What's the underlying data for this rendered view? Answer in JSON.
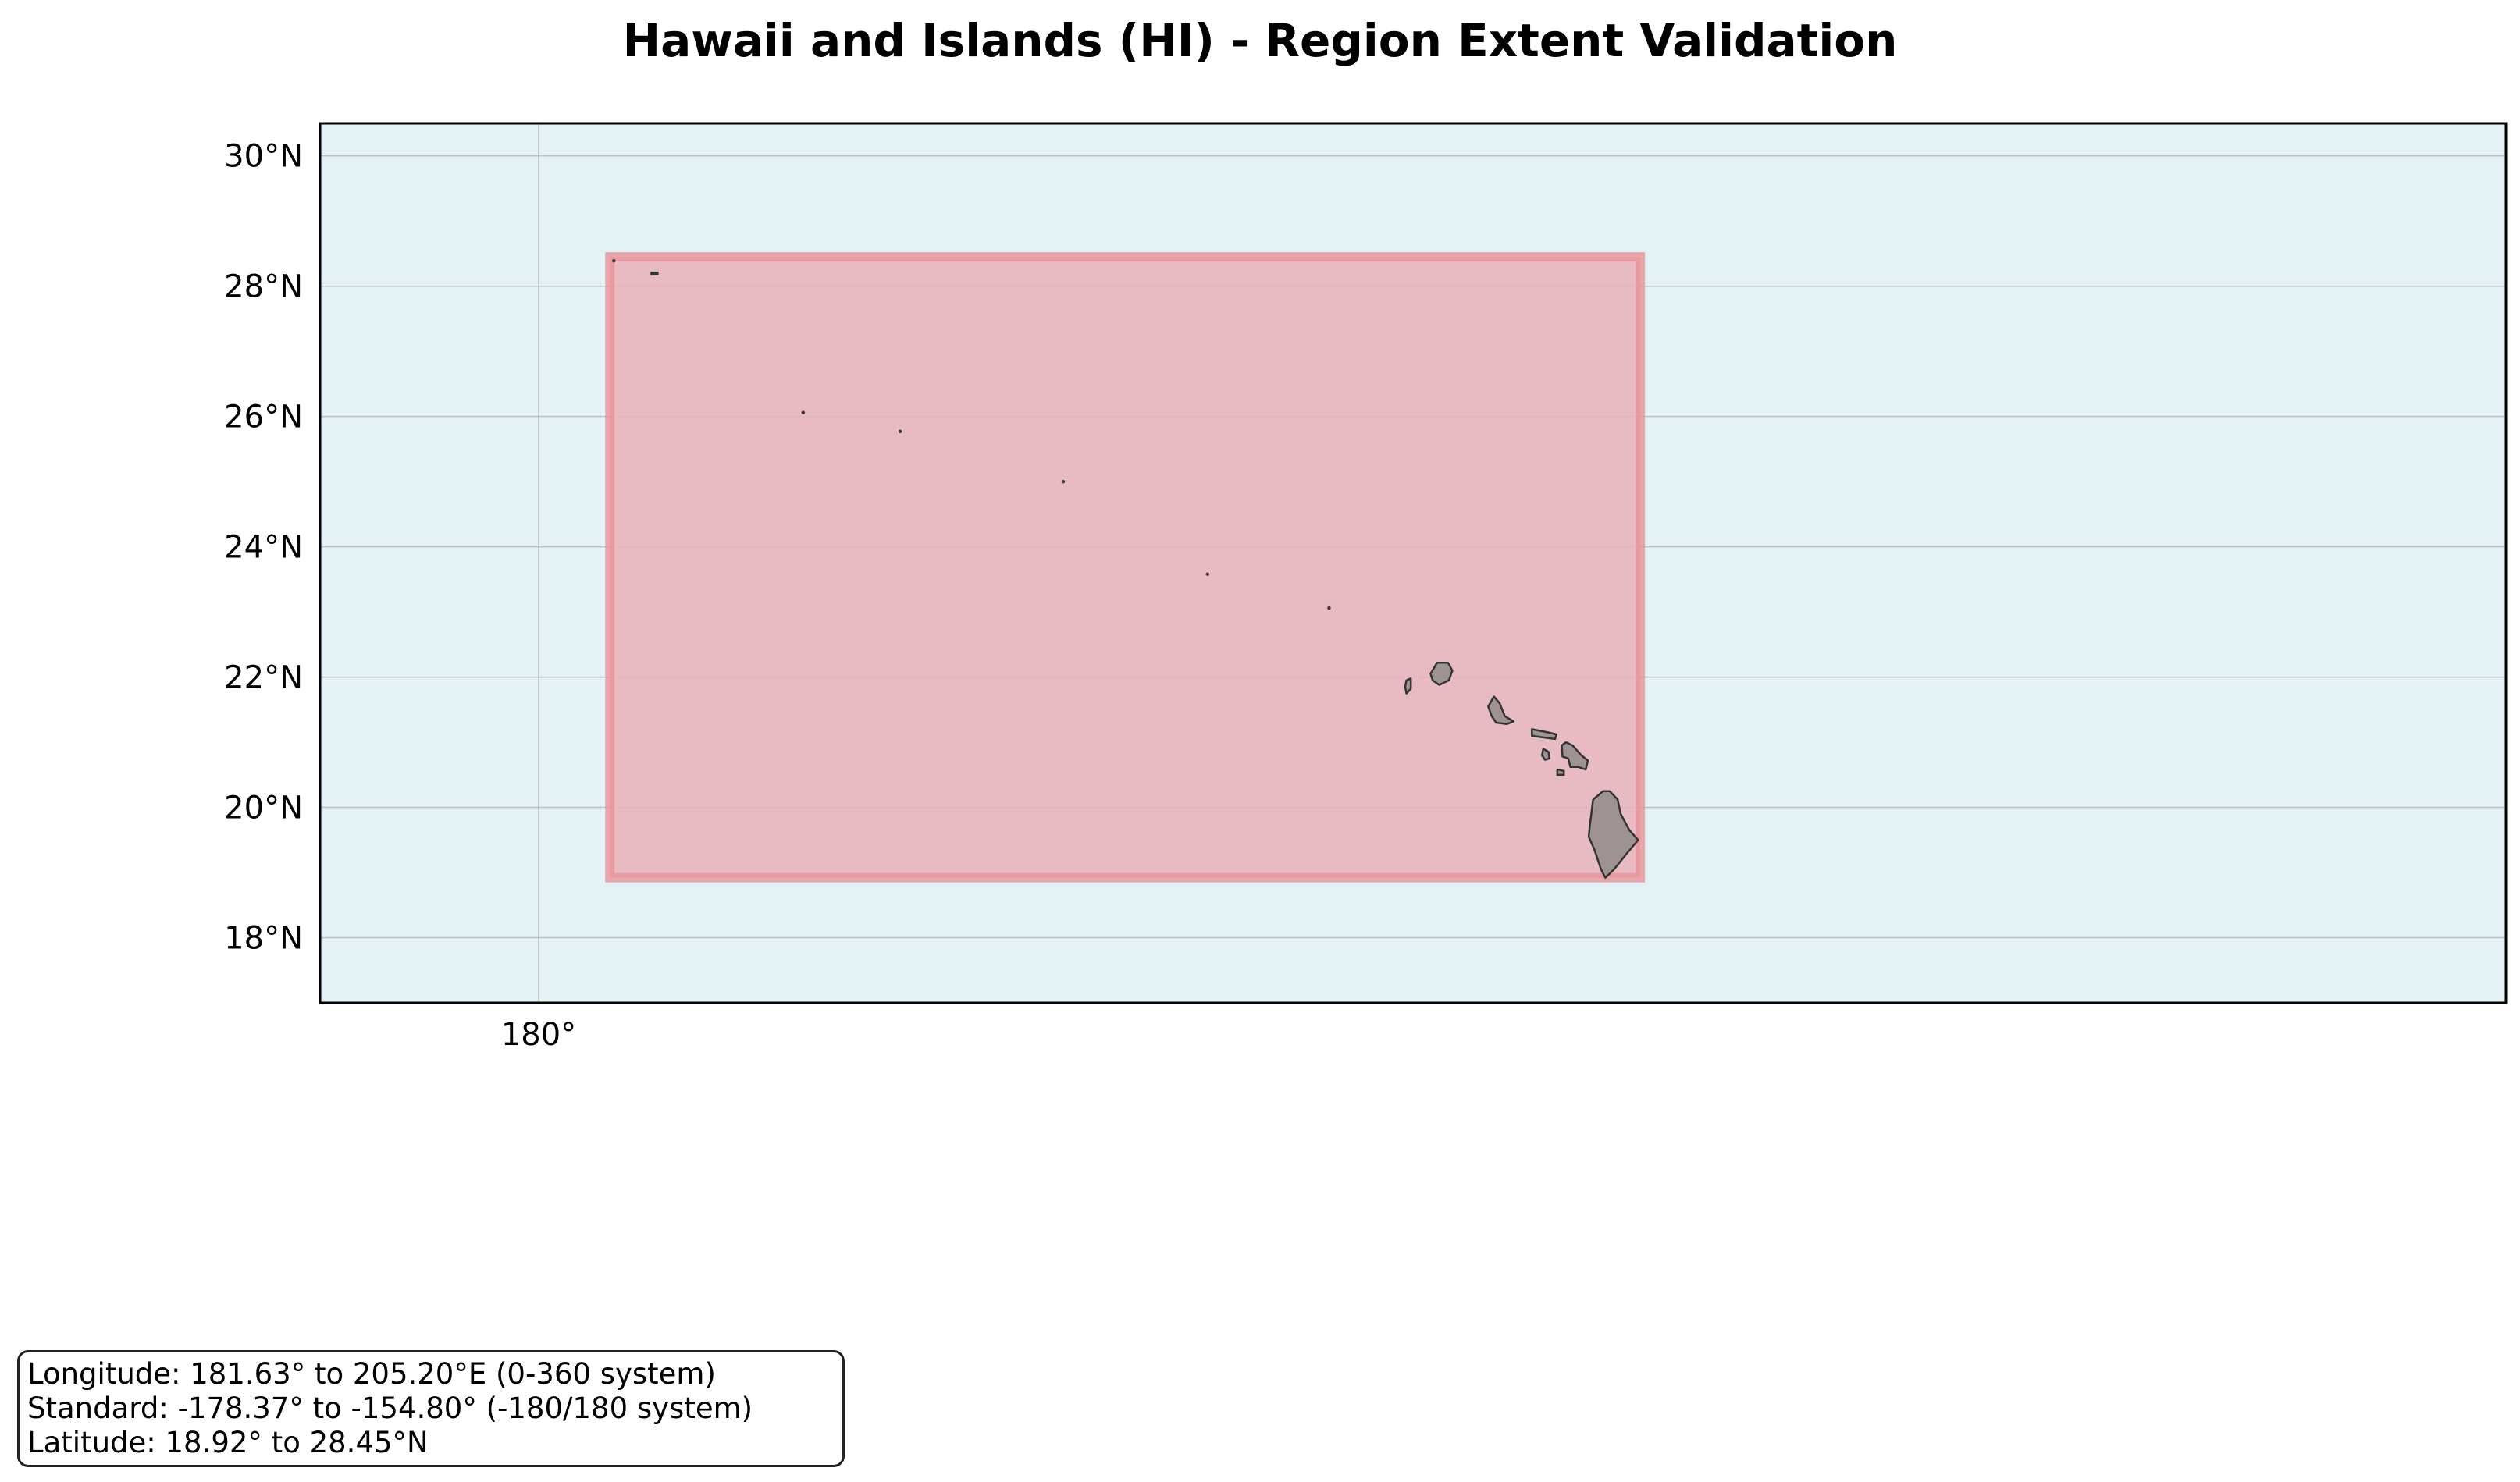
{
  "title": "Hawaii and Islands (HI) - Region Extent Validation",
  "map": {
    "projection": "PlateCarree",
    "lon_range": [
      175,
      225
    ],
    "lat_range": [
      17,
      30.5
    ],
    "ocean_color": "#e4f2f6",
    "land_color": "#9e9292",
    "land_edge_color": "#333333",
    "gridlines": true,
    "lat_ticks": [
      {
        "value": 18,
        "label": "18°N"
      },
      {
        "value": 20,
        "label": "20°N"
      },
      {
        "value": 22,
        "label": "22°N"
      },
      {
        "value": 24,
        "label": "24°N"
      },
      {
        "value": 26,
        "label": "26°N"
      },
      {
        "value": 28,
        "label": "28°N"
      },
      {
        "value": 30,
        "label": "30°N"
      }
    ],
    "lon_ticks": [
      {
        "value": 180,
        "label": "180°"
      }
    ]
  },
  "region": {
    "code": "HI",
    "name": "Hawaii and Islands",
    "lon_min": 181.63,
    "lon_max": 205.2,
    "lat_min": 18.92,
    "lat_max": 28.45,
    "fill_color": "#e8b4bc",
    "edge_color": "#e88f94"
  },
  "islands": [
    {
      "name": "Hawaii",
      "points": [
        [
          204.35,
          20.25
        ],
        [
          204.12,
          20.12
        ],
        [
          204.05,
          19.75
        ],
        [
          204.02,
          19.55
        ],
        [
          204.15,
          19.35
        ],
        [
          204.3,
          19.05
        ],
        [
          204.4,
          18.92
        ],
        [
          204.6,
          19.05
        ],
        [
          204.9,
          19.3
        ],
        [
          205.15,
          19.5
        ],
        [
          204.95,
          19.65
        ],
        [
          204.75,
          19.9
        ],
        [
          204.68,
          20.12
        ],
        [
          204.5,
          20.25
        ]
      ]
    },
    {
      "name": "Maui",
      "points": [
        [
          203.5,
          21.0
        ],
        [
          203.65,
          20.95
        ],
        [
          203.85,
          20.8
        ],
        [
          204.0,
          20.72
        ],
        [
          203.95,
          20.58
        ],
        [
          203.78,
          20.62
        ],
        [
          203.6,
          20.62
        ],
        [
          203.55,
          20.75
        ],
        [
          203.42,
          20.78
        ],
        [
          203.4,
          20.95
        ]
      ]
    },
    {
      "name": "Molokai",
      "points": [
        [
          202.72,
          21.2
        ],
        [
          203.1,
          21.15
        ],
        [
          203.28,
          21.12
        ],
        [
          203.25,
          21.05
        ],
        [
          202.9,
          21.08
        ],
        [
          202.72,
          21.1
        ]
      ]
    },
    {
      "name": "Lanai",
      "points": [
        [
          202.98,
          20.9
        ],
        [
          203.1,
          20.85
        ],
        [
          203.12,
          20.75
        ],
        [
          203.02,
          20.73
        ],
        [
          202.95,
          20.8
        ]
      ]
    },
    {
      "name": "Kahoolawe",
      "points": [
        [
          203.3,
          20.58
        ],
        [
          203.45,
          20.56
        ],
        [
          203.45,
          20.5
        ],
        [
          203.3,
          20.5
        ]
      ]
    },
    {
      "name": "Oahu",
      "points": [
        [
          201.72,
          21.55
        ],
        [
          201.85,
          21.7
        ],
        [
          201.98,
          21.6
        ],
        [
          202.1,
          21.4
        ],
        [
          202.3,
          21.32
        ],
        [
          202.15,
          21.28
        ],
        [
          201.9,
          21.3
        ],
        [
          201.8,
          21.4
        ]
      ]
    },
    {
      "name": "Kauai",
      "points": [
        [
          200.4,
          22.05
        ],
        [
          200.55,
          22.22
        ],
        [
          200.8,
          22.22
        ],
        [
          200.9,
          22.1
        ],
        [
          200.82,
          21.95
        ],
        [
          200.6,
          21.88
        ],
        [
          200.45,
          21.95
        ]
      ]
    },
    {
      "name": "Niihau",
      "points": [
        [
          199.85,
          21.95
        ],
        [
          199.95,
          21.98
        ],
        [
          199.95,
          21.82
        ],
        [
          199.85,
          21.75
        ],
        [
          199.82,
          21.85
        ]
      ]
    }
  ],
  "small_islands": [
    {
      "name": "Nihoa",
      "lon": 198.08,
      "lat": 23.06
    },
    {
      "name": "Necker",
      "lon": 195.3,
      "lat": 23.58
    },
    {
      "name": "Gardner Pinnacles",
      "lon": 192.0,
      "lat": 25.0
    },
    {
      "name": "Laysan",
      "lon": 188.27,
      "lat": 25.77
    },
    {
      "name": "Lisianski",
      "lon": 186.05,
      "lat": 26.06
    },
    {
      "name": "Kure",
      "lon": 181.72,
      "lat": 28.39
    }
  ],
  "small_island_shapes": [
    {
      "name": "Midway",
      "points": [
        [
          182.58,
          28.21
        ],
        [
          182.72,
          28.21
        ],
        [
          182.72,
          28.18
        ],
        [
          182.58,
          28.18
        ]
      ]
    }
  ],
  "info_box": {
    "lines": [
      "Longitude: 181.63° to 205.20°E (0-360 system)",
      "Standard: -178.37° to -154.80° (-180/180 system)",
      "Latitude: 18.92° to 28.45°N"
    ]
  }
}
